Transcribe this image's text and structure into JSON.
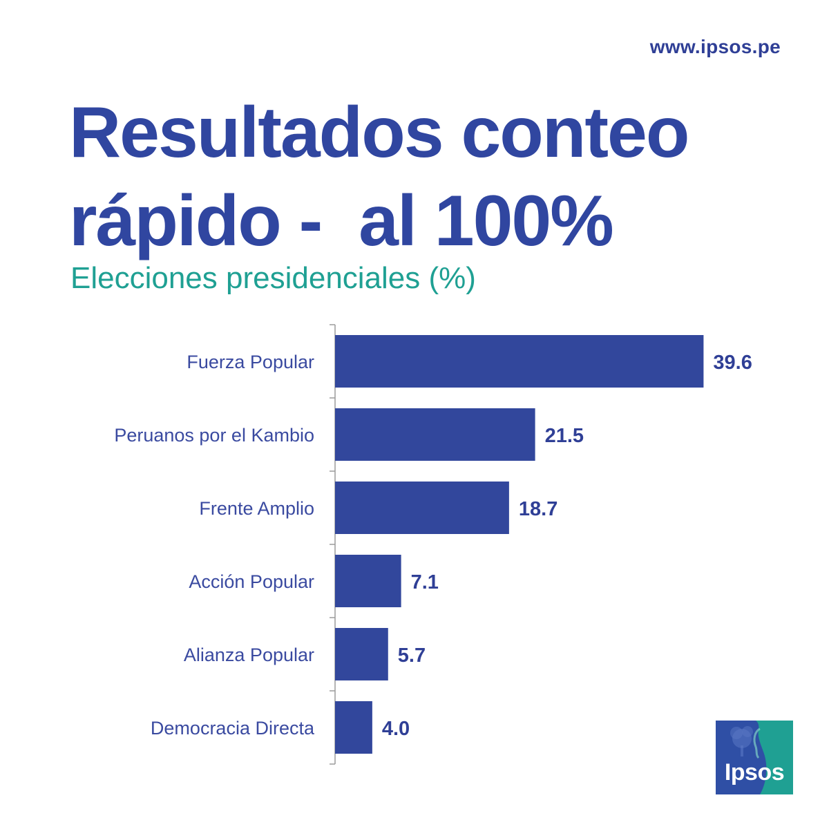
{
  "header": {
    "url": "www.ipsos.pe",
    "title": "Resultados conteo\nrápido -  al 100%",
    "subtitle": "Elecciones presidenciales (%)"
  },
  "logo": {
    "text": "Ipsos",
    "colors": {
      "blue": "#2f4fa5",
      "teal": "#1fa093"
    }
  },
  "colors": {
    "bar": "#32479c",
    "title": "#3046a0",
    "subtitle": "#1fa093",
    "labels": "#3a4aa0",
    "values": "#2f3f96"
  },
  "chart_data": {
    "type": "bar",
    "orientation": "horizontal",
    "categories": [
      "Fuerza Popular",
      "Peruanos por el Kambio",
      "Frente Amplio",
      "Acción Popular",
      "Alianza Popular",
      "Democracia Directa"
    ],
    "values": [
      39.6,
      21.5,
      18.7,
      7.1,
      5.7,
      4.0
    ],
    "value_labels": [
      "39.6",
      "21.5",
      "18.7",
      "7.1",
      "5.7",
      "4.0"
    ],
    "title": "Resultados conteo rápido -  al 100%",
    "subtitle": "Elecciones presidenciales (%)",
    "xlim": [
      0,
      40
    ],
    "grid": false,
    "legend": "none"
  }
}
